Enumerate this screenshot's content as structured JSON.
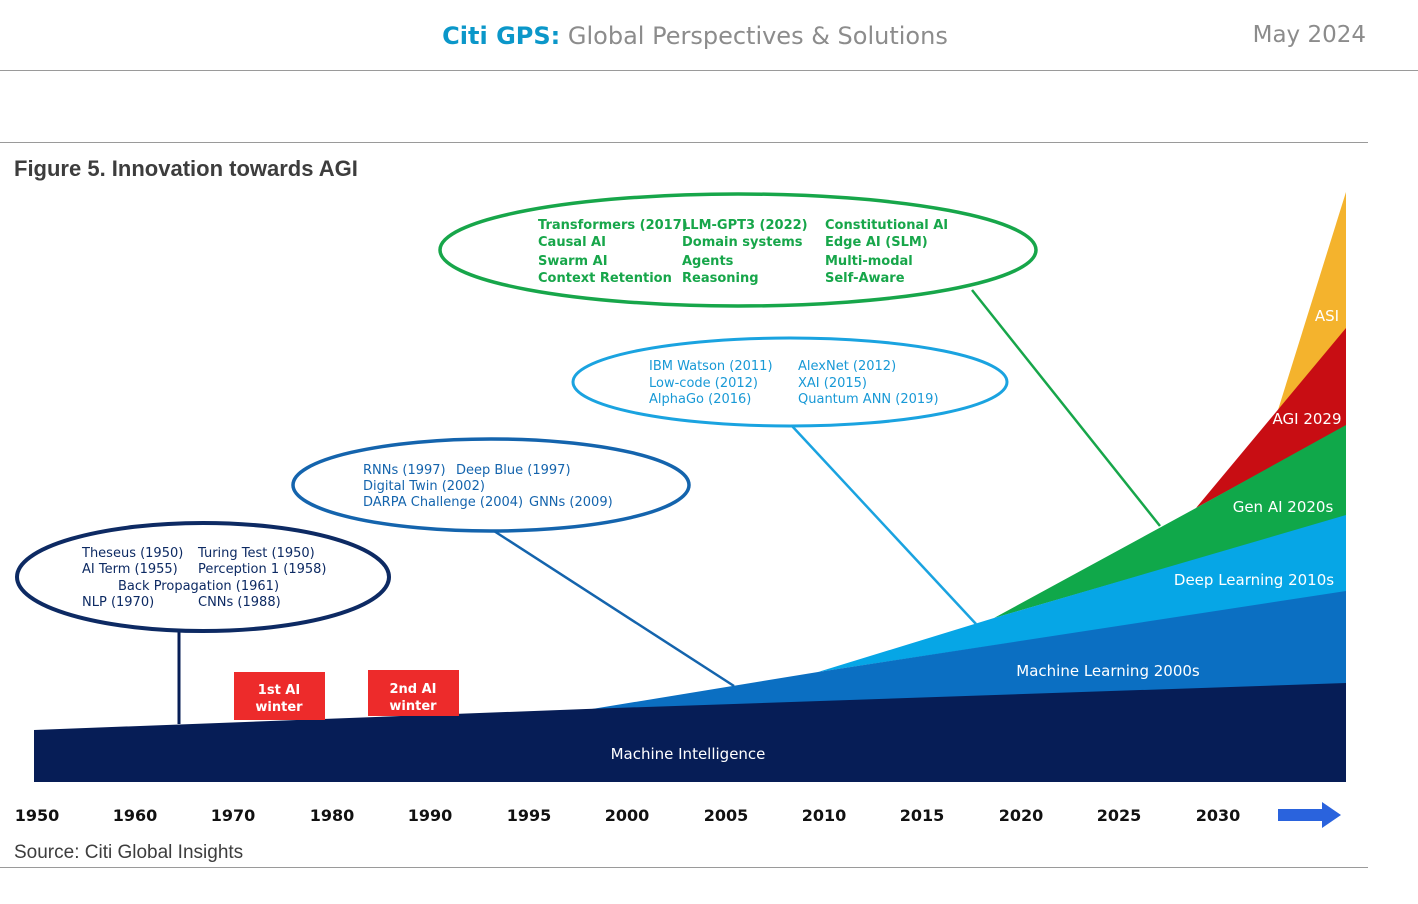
{
  "header": {
    "brand_strong": "Citi GPS:",
    "brand_rest": "Global Perspectives & Solutions",
    "date": "May 2024"
  },
  "figure": {
    "title": "Figure 5. Innovation towards AGI",
    "source": "Source: Citi Global Insights"
  },
  "layers": {
    "machine_intelligence": "Machine Intelligence",
    "machine_learning": "Machine Learning 2000s",
    "deep_learning": "Deep Learning 2010s",
    "gen_ai": "Gen AI 2020s",
    "agi": "AGI 2029",
    "asi": "ASI"
  },
  "winters": {
    "first_l1": "1st AI",
    "first_l2": "winter",
    "second_l1": "2nd AI",
    "second_l2": "winter"
  },
  "bubbles": {
    "early": [
      "Theseus (1950)",
      "Turing Test (1950)",
      "AI Term (1955)",
      "Perception 1 (1958)",
      "Back Propagation (1961)",
      "NLP (1970)",
      "CNNs (1988)"
    ],
    "nineties": [
      "RNNs (1997)",
      "Deep Blue (1997)",
      "Digital Twin (2002)",
      "DARPA Challenge (2004)",
      "GNNs (2009)"
    ],
    "tens": [
      "IBM Watson (2011)",
      "AlexNet (2012)",
      "Low-code (2012)",
      "XAI (2015)",
      "AlphaGo (2016)",
      "Quantum ANN (2019)"
    ],
    "twenties": [
      "Transformers (2017)",
      "LLM-GPT3 (2022)",
      "Constitutional AI",
      "Causal AI",
      "Domain systems",
      "Edge AI (SLM)",
      "Swarm AI",
      "Agents",
      "Multi-modal",
      "Context Retention",
      "Reasoning",
      "Self-Aware"
    ]
  },
  "axis": {
    "years": [
      "1950",
      "1960",
      "1970",
      "1980",
      "1990",
      "1995",
      "2000",
      "2005",
      "2010",
      "2015",
      "2020",
      "2025",
      "2030"
    ]
  },
  "colors": {
    "navy": "#061d56",
    "mid_blue": "#0b6fc2",
    "light_blue": "#06a6e6",
    "green": "#10a84a",
    "red": "#c80d13",
    "orange": "#f4b32d",
    "winter": "#ed2b2b",
    "arrow": "#2a63dd"
  }
}
